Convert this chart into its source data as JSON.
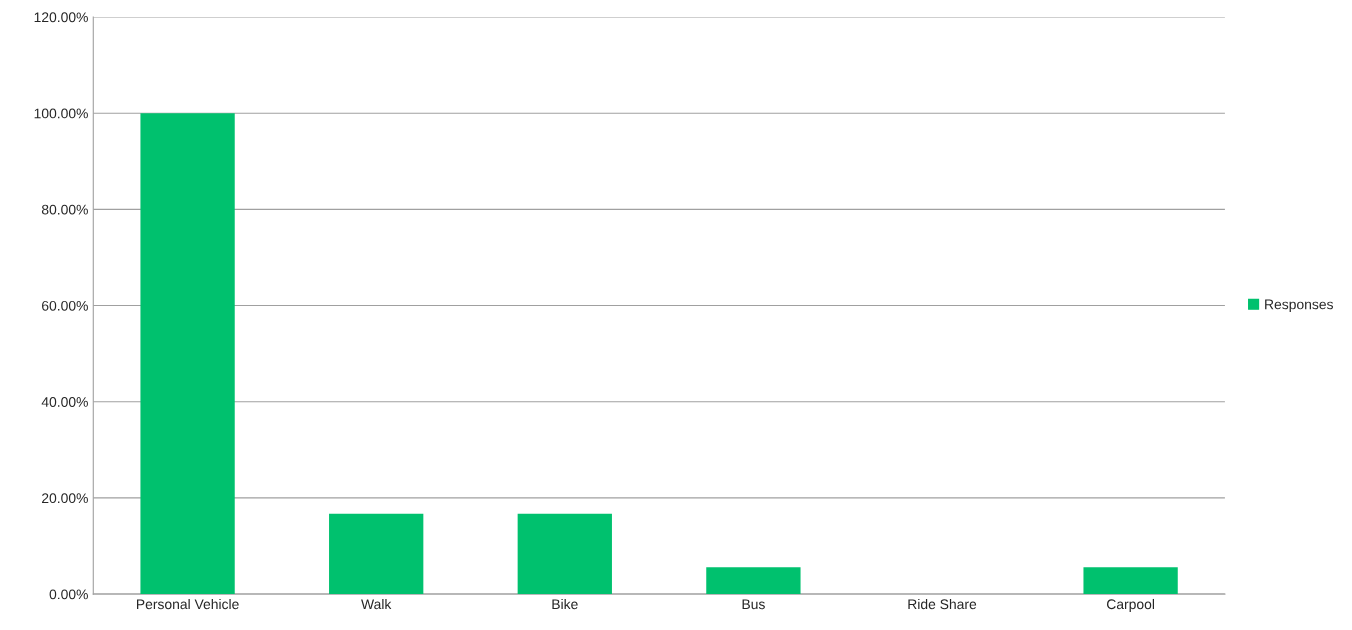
{
  "chart_data": {
    "type": "bar",
    "categories": [
      "Personal Vehicle",
      "Walk",
      "Bike",
      "Bus",
      "Ride Share",
      "Carpool"
    ],
    "series": [
      {
        "name": "Responses",
        "color": "#00c16e",
        "values": [
          100,
          16.7,
          16.7,
          5.6,
          0,
          5.6
        ]
      }
    ],
    "ylim": [
      0,
      120
    ],
    "yticks": [
      {
        "value": 0,
        "label": "0.00%"
      },
      {
        "value": 20,
        "label": "20.00%"
      },
      {
        "value": 40,
        "label": "40.00%"
      },
      {
        "value": 60,
        "label": "60.00%"
      },
      {
        "value": 80,
        "label": "80.00%"
      },
      {
        "value": 100,
        "label": "100.00%"
      },
      {
        "value": 120,
        "label": "120.00%"
      }
    ],
    "grid": "y",
    "legend": "right"
  }
}
